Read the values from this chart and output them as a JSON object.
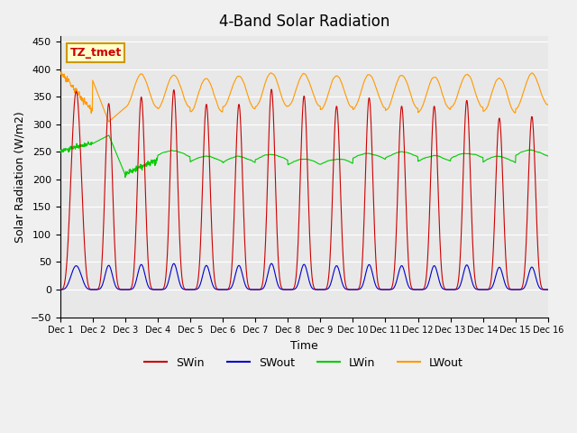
{
  "title": "4-Band Solar Radiation",
  "xlabel": "Time",
  "ylabel": "Solar Radiation (W/m2)",
  "ylim": [
    -50,
    460
  ],
  "xlim": [
    0,
    15
  ],
  "xtick_labels": [
    "Dec 1",
    "Dec 2",
    "Dec 3",
    "Dec 4",
    "Dec 5",
    "Dec 6",
    "Dec 7",
    "Dec 8",
    "Dec 9",
    "Dec 10",
    "Dec 11",
    "Dec 12",
    "Dec 13",
    "Dec 14",
    "Dec 15",
    "Dec 16"
  ],
  "ytick_values": [
    -50,
    0,
    50,
    100,
    150,
    200,
    250,
    300,
    350,
    400,
    450
  ],
  "colors": {
    "SWin": "#cc0000",
    "SWout": "#0000cc",
    "LWin": "#00cc00",
    "LWout": "#ff9900"
  },
  "annotation_text": "TZ_tmet",
  "annotation_color": "#cc0000",
  "annotation_bg": "#ffffcc",
  "annotation_border": "#cc9900",
  "plot_bg": "#e8e8e8",
  "grid_color": "#ffffff",
  "n_days": 15,
  "pts_per_day": 96
}
